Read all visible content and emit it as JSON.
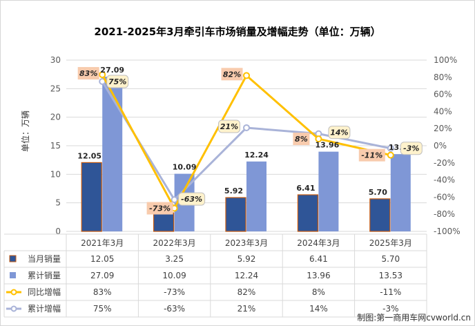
{
  "chart_data": {
    "type": "bar",
    "title": "2021-2025年3月牵引车市场销量及增幅走势（单位：万辆）",
    "ylabel": "单位：万辆",
    "ylim": [
      0,
      30
    ],
    "y2lim": [
      -100,
      100
    ],
    "yticks": [
      "0",
      "5",
      "10",
      "15",
      "20",
      "25",
      "30"
    ],
    "y2ticks": [
      "-100%",
      "-80%",
      "-60%",
      "-40%",
      "-20%",
      "0%",
      "20%",
      "40%",
      "60%",
      "80%",
      "100%"
    ],
    "categories": [
      "2021年3月",
      "2022年3月",
      "2023年3月",
      "2024年3月",
      "2025年3月"
    ],
    "series": [
      {
        "name": "当月销量",
        "kind": "bar",
        "axis": "left",
        "color": "#2F5597",
        "values": [
          12.05,
          3.25,
          5.92,
          6.41,
          5.7
        ],
        "labels": [
          "12.05",
          "3.25",
          "5.92",
          "6.41",
          "5.70"
        ]
      },
      {
        "name": "累计销量",
        "kind": "bar",
        "axis": "left",
        "color": "#7F97D6",
        "values": [
          27.09,
          10.09,
          12.24,
          13.96,
          13.53
        ],
        "labels": [
          "27.09",
          "10.09",
          "12.24",
          "13.96",
          "13.53"
        ]
      },
      {
        "name": "同比增幅",
        "kind": "line",
        "axis": "right",
        "color": "#FFC000",
        "values": [
          83,
          -73,
          82,
          8,
          -11
        ],
        "labels": [
          "83%",
          "-73%",
          "82%",
          "8%",
          "-11%"
        ]
      },
      {
        "name": "累计增幅",
        "kind": "line",
        "axis": "right",
        "color": "#A9B3D8",
        "values": [
          75,
          -63,
          21,
          14,
          -3
        ],
        "labels": [
          "75%",
          "-63%",
          "21%",
          "14%",
          "-3%"
        ]
      }
    ],
    "grid": true,
    "legend": "table-below"
  },
  "watermark": "制图:第一商用车网cvworld.cn",
  "colors": {
    "bar_outline": "#C55A11",
    "yoy_label_bg": "#F8CBAD",
    "cum_label_bg": "#FFF2CC",
    "grid": "#D9D9D9"
  }
}
